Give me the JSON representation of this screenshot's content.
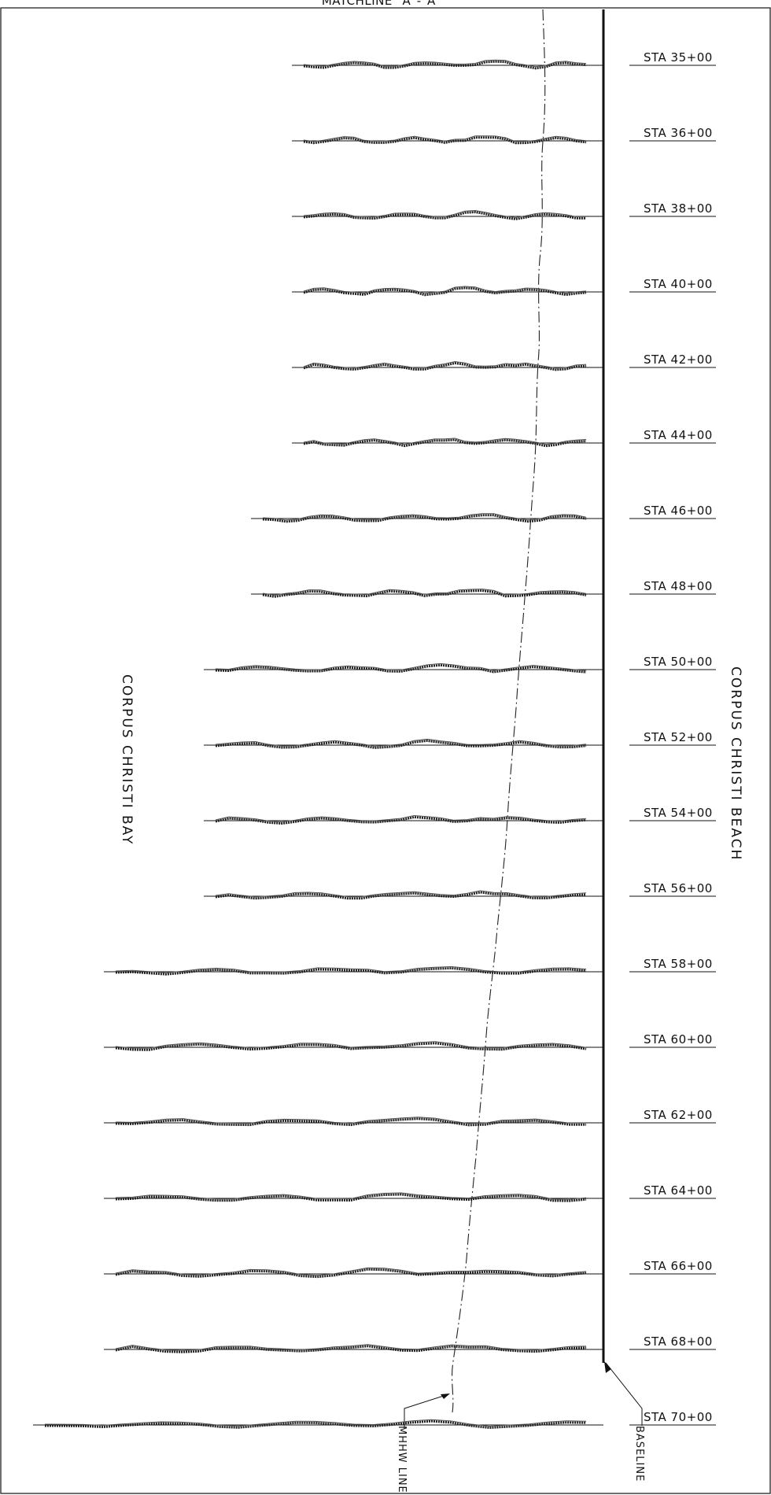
{
  "drawing": {
    "matchline": "MATCHLINE \"A\"-\"A\"",
    "left_label": "CORPUS CHRISTI BAY",
    "right_label": "CORPUS CHRISTI BEACH",
    "mhhw_label": "MHHW LINE",
    "baseline_label": "BASELINE"
  },
  "stations": [
    {
      "label": "STA 35+00",
      "bay_extent": 0.53
    },
    {
      "label": "STA 36+00",
      "bay_extent": 0.53
    },
    {
      "label": "STA 38+00",
      "bay_extent": 0.53
    },
    {
      "label": "STA 40+00",
      "bay_extent": 0.53
    },
    {
      "label": "STA 42+00",
      "bay_extent": 0.53
    },
    {
      "label": "STA 44+00",
      "bay_extent": 0.53
    },
    {
      "label": "STA 46+00",
      "bay_extent": 0.6
    },
    {
      "label": "STA 48+00",
      "bay_extent": 0.6
    },
    {
      "label": "STA 50+00",
      "bay_extent": 0.68
    },
    {
      "label": "STA 52+00",
      "bay_extent": 0.68
    },
    {
      "label": "STA 54+00",
      "bay_extent": 0.68
    },
    {
      "label": "STA 56+00",
      "bay_extent": 0.68
    },
    {
      "label": "STA 58+00",
      "bay_extent": 0.85
    },
    {
      "label": "STA 60+00",
      "bay_extent": 0.85
    },
    {
      "label": "STA 62+00",
      "bay_extent": 0.85
    },
    {
      "label": "STA 64+00",
      "bay_extent": 0.85
    },
    {
      "label": "STA 66+00",
      "bay_extent": 0.85
    },
    {
      "label": "STA 68+00",
      "bay_extent": 0.85
    },
    {
      "label": "STA 70+00",
      "bay_extent": 0.97
    }
  ]
}
